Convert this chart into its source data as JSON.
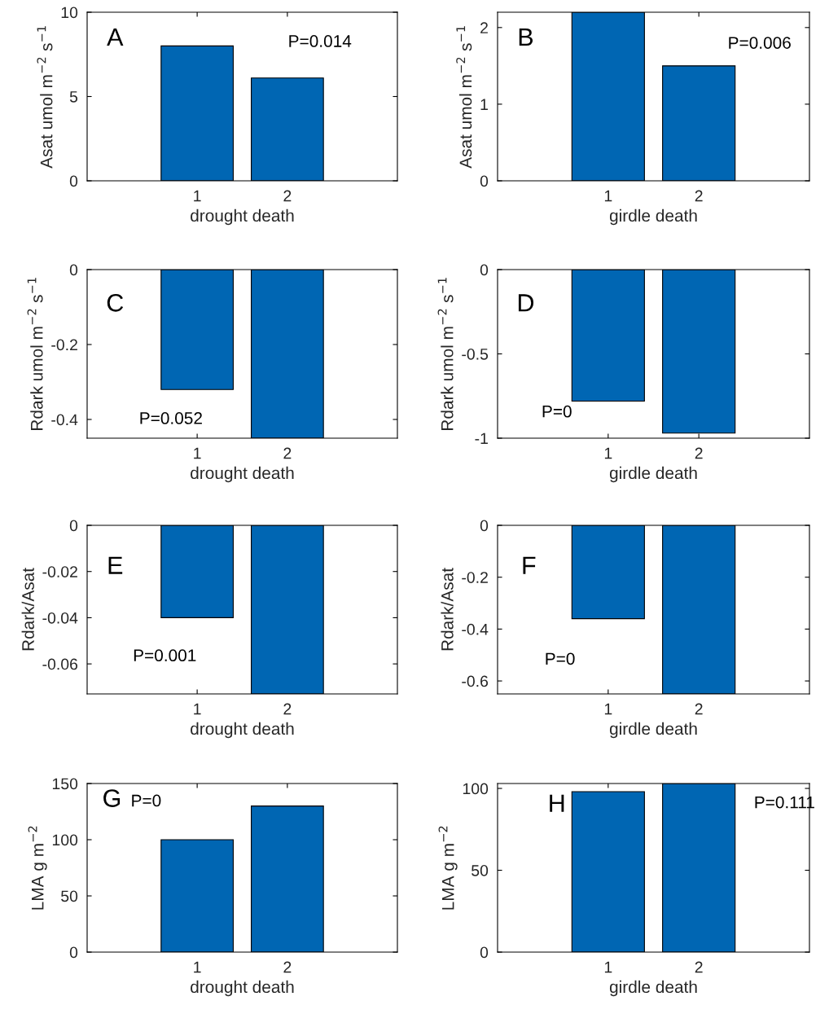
{
  "chart_data": [
    {
      "type": "bar",
      "categories": [
        "1",
        "2"
      ],
      "values": [
        8.0,
        6.1
      ],
      "color": "#0066b3",
      "xlabel": "drought death",
      "ylabel": "Asat umol m$^{−2}$ s$^{−1}$",
      "ylim": [
        0,
        10
      ],
      "yticks": [
        0,
        5,
        10
      ],
      "annotations": [
        "A",
        "P=0.014"
      ]
    },
    {
      "type": "bar",
      "categories": [
        "1",
        "2"
      ],
      "values": [
        2.2,
        1.5
      ],
      "color": "#0066b3",
      "xlabel": "girdle death",
      "ylabel": "Asat umol m$^{−2}$ s$^{−1}$",
      "ylim": [
        0,
        2.2
      ],
      "yticks": [
        0,
        1,
        2
      ],
      "annotations": [
        "B",
        "P=0.006"
      ]
    },
    {
      "type": "bar",
      "categories": [
        "1",
        "2"
      ],
      "values": [
        -0.32,
        -0.45
      ],
      "color": "#0066b3",
      "xlabel": "drought death",
      "ylabel": "Rdark umol m$^{−2}$ s$^{−1}$",
      "ylim": [
        -0.45,
        0
      ],
      "yticks": [
        -0.4,
        -0.2,
        0
      ],
      "annotations": [
        "C",
        "P=0.052"
      ]
    },
    {
      "type": "bar",
      "categories": [
        "1",
        "2"
      ],
      "values": [
        -0.78,
        -0.97
      ],
      "color": "#0066b3",
      "xlabel": "girdle death",
      "ylabel": "Rdark umol m$^{−2}$ s$^{−1}$",
      "ylim": [
        -1,
        0
      ],
      "yticks": [
        -1,
        -0.5,
        0
      ],
      "annotations": [
        "D",
        "P=0"
      ]
    },
    {
      "type": "bar",
      "categories": [
        "1",
        "2"
      ],
      "values": [
        -0.04,
        -0.073
      ],
      "color": "#0066b3",
      "xlabel": "drought death",
      "ylabel": "Rdark/Asat",
      "ylim": [
        -0.073,
        0
      ],
      "yticks": [
        -0.06,
        -0.04,
        -0.02,
        0
      ],
      "annotations": [
        "E",
        "P=0.001"
      ]
    },
    {
      "type": "bar",
      "categories": [
        "1",
        "2"
      ],
      "values": [
        -0.36,
        -0.65
      ],
      "color": "#0066b3",
      "xlabel": "girdle death",
      "ylabel": "Rdark/Asat",
      "ylim": [
        -0.65,
        0
      ],
      "yticks": [
        -0.6,
        -0.4,
        -0.2,
        0
      ],
      "annotations": [
        "F",
        "P=0"
      ]
    },
    {
      "type": "bar",
      "categories": [
        "1",
        "2"
      ],
      "values": [
        100,
        130
      ],
      "color": "#0066b3",
      "xlabel": "drought death",
      "ylabel": "LMA g m$^{−2}$",
      "ylim": [
        0,
        150
      ],
      "yticks": [
        0,
        50,
        100,
        150
      ],
      "annotations": [
        "G",
        "P=0"
      ]
    },
    {
      "type": "bar",
      "categories": [
        "1",
        "2"
      ],
      "values": [
        98,
        103
      ],
      "color": "#0066b3",
      "xlabel": "girdle death",
      "ylabel": "LMA g m$^{−2}$",
      "ylim": [
        0,
        103
      ],
      "yticks": [
        0,
        50,
        100
      ],
      "annotations": [
        "H",
        "P=0.111"
      ]
    }
  ]
}
